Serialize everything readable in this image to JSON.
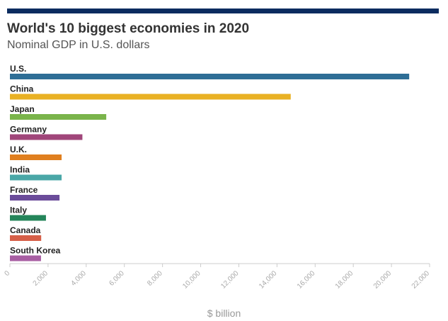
{
  "header": {
    "title": "World's 10 biggest economies in 2020",
    "subtitle": "Nominal GDP in U.S. dollars",
    "accent_color": "#0b2c5f"
  },
  "chart_data": {
    "type": "bar",
    "orientation": "horizontal",
    "title": "World's 10 biggest economies in 2020",
    "subtitle": "Nominal GDP in U.S. dollars",
    "xlabel": "$ billion",
    "ylabel": "",
    "xlim": [
      0,
      22000
    ],
    "ticks": [
      "0",
      "2,000",
      "4,000",
      "6,000",
      "8,000",
      "10,000",
      "12,000",
      "14,000",
      "16,000",
      "18,000",
      "20,000",
      "22,000"
    ],
    "tick_values": [
      0,
      2000,
      4000,
      6000,
      8000,
      10000,
      12000,
      14000,
      16000,
      18000,
      20000,
      22000
    ],
    "grid": false,
    "categories": [
      "U.S.",
      "China",
      "Japan",
      "Germany",
      "U.K.",
      "India",
      "France",
      "Italy",
      "Canada",
      "South Korea"
    ],
    "values": [
      20930,
      14720,
      5050,
      3800,
      2710,
      2710,
      2600,
      1890,
      1640,
      1630
    ],
    "colors": [
      "#2e6e96",
      "#e9b124",
      "#7ab44b",
      "#a0467a",
      "#e07f1f",
      "#4aa7a7",
      "#6b4c9a",
      "#24855a",
      "#d65f48",
      "#a85fa3"
    ]
  }
}
